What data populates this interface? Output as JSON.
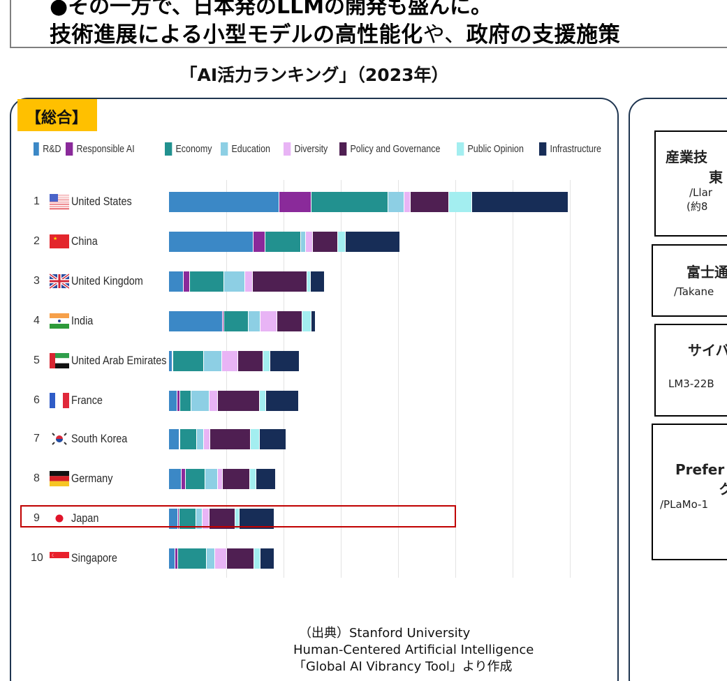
{
  "headline": {
    "line1": "●その一方で、日本発のLLMの開発も盛んに。",
    "line2_bold": "技術進展による小型モデルの高性能化",
    "line2_thin": "や、",
    "line2_rest": "政府の支援施策"
  },
  "chart_title": "「AI活力ランキング」（2023年）",
  "category_badge": "【総合】",
  "colors": {
    "R&D": "#3b88c6",
    "Responsible AI": "#8a2a9a",
    "Economy": "#22918f",
    "Education": "#8dcfe4",
    "Diversity": "#e8b4f5",
    "Policy and Governance": "#4f1f52",
    "Public Opinion": "#a3eef0",
    "Infrastructure": "#172d57",
    "highlight": "#c00000",
    "badge": "#ffc000",
    "panel_border": "#1f3550"
  },
  "legend": [
    "R&D",
    "Responsible AI",
    "Economy",
    "Education",
    "Diversity",
    "Policy and Governance",
    "Public Opinion",
    "Infrastructure"
  ],
  "chart_data": {
    "type": "bar",
    "orientation": "horizontal",
    "stacked": true,
    "title": "「AI活力ランキング」（2023年）【総合】",
    "xlabel": "",
    "ylabel": "",
    "grid": true,
    "legend_position": "top",
    "xlim": [
      0,
      70
    ],
    "categories": [
      "United States",
      "China",
      "United Kingdom",
      "India",
      "United Arab Emirates",
      "France",
      "South Korea",
      "Germany",
      "Japan",
      "Singapore"
    ],
    "ranks": [
      1,
      2,
      3,
      4,
      5,
      6,
      7,
      8,
      9,
      10
    ],
    "series": [
      {
        "name": "R&D",
        "values": [
          19.3,
          14.8,
          2.6,
          9.4,
          0.6,
          1.5,
          1.8,
          2.2,
          1.6,
          1.1
        ]
      },
      {
        "name": "Responsible AI",
        "values": [
          5.6,
          2.0,
          1.1,
          0.2,
          0.1,
          0.4,
          0.1,
          0.7,
          0.2,
          0.5
        ]
      },
      {
        "name": "Economy",
        "values": [
          13.4,
          6.2,
          5.9,
          4.3,
          5.4,
          2.0,
          3.0,
          3.4,
          3.0,
          5.0
        ]
      },
      {
        "name": "Education",
        "values": [
          2.8,
          0.9,
          3.7,
          2.1,
          3.2,
          3.2,
          1.2,
          2.2,
          1.1,
          1.5
        ]
      },
      {
        "name": "Diversity",
        "values": [
          1.1,
          1.2,
          1.3,
          2.9,
          2.7,
          1.5,
          1.1,
          0.9,
          1.2,
          2.0
        ]
      },
      {
        "name": "Policy and Governance",
        "values": [
          6.7,
          4.4,
          9.5,
          4.4,
          4.5,
          7.3,
          7.0,
          4.8,
          4.5,
          4.8
        ]
      },
      {
        "name": "Public Opinion",
        "values": [
          4.0,
          1.3,
          0.7,
          1.6,
          1.2,
          1.0,
          1.6,
          1.1,
          0.7,
          1.1
        ]
      },
      {
        "name": "Infrastructure",
        "values": [
          16.8,
          9.4,
          2.3,
          0.6,
          5.0,
          5.7,
          4.6,
          3.3,
          6.0,
          2.3
        ]
      }
    ],
    "highlighted_category": "Japan",
    "annotations": [
      "Japan row highlighted with red box"
    ]
  },
  "source": {
    "line1": "（出典）Stanford University",
    "line2": "Human-Centered Artificial Intelligence",
    "line3": "「Global AI Vibrancy Tool」より作成"
  },
  "right_panel": {
    "models": [
      {
        "name_line1": "産業技",
        "name_line2": "東",
        "sub_line1": "/Llar",
        "sub_line2": "(約8"
      },
      {
        "name_line1": "富士通",
        "sub_line1": "/Takane"
      },
      {
        "name_line1": "サイバ",
        "sub_line1": "/",
        "sub_line2": "LM3-22B"
      },
      {
        "name_line1": "Prefer",
        "name_line2": "ク",
        "sub_line1": "/PLaMo-1"
      }
    ]
  }
}
